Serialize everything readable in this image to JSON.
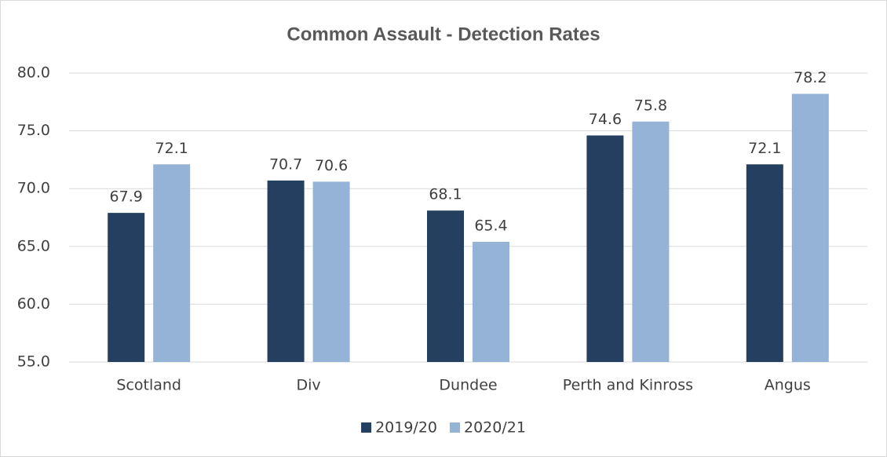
{
  "chart_data": {
    "type": "bar",
    "title": "Common Assault - Detection Rates",
    "categories": [
      "Scotland",
      "Div",
      "Dundee",
      "Perth and Kinross",
      "Angus"
    ],
    "series": [
      {
        "name": "2019/20",
        "color": "#243f60",
        "values": [
          67.9,
          70.7,
          68.1,
          74.6,
          72.1
        ]
      },
      {
        "name": "2020/21",
        "color": "#95b3d7",
        "values": [
          72.1,
          70.6,
          65.4,
          75.8,
          78.2
        ]
      }
    ],
    "ylim": [
      55,
      80
    ],
    "yticks": [
      {
        "value": 55,
        "label": "55.0"
      },
      {
        "value": 60,
        "label": "60.0"
      },
      {
        "value": 65,
        "label": "65.0"
      },
      {
        "value": 70,
        "label": "70.0"
      },
      {
        "value": 75,
        "label": "75.0"
      },
      {
        "value": 80,
        "label": "80.0"
      }
    ],
    "grid": true,
    "legend": "bottom"
  }
}
